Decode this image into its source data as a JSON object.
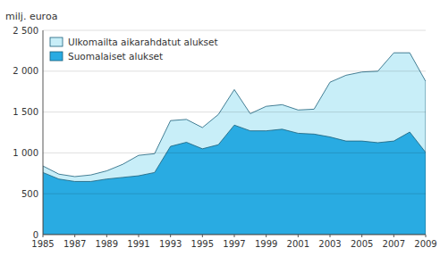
{
  "chart_data": {
    "type": "area",
    "ylabel": "milj. euroa",
    "x": [
      1985,
      1986,
      1987,
      1988,
      1989,
      1990,
      1991,
      1992,
      1993,
      1994,
      1995,
      1996,
      1997,
      1998,
      1999,
      2000,
      2001,
      2002,
      2003,
      2004,
      2005,
      2006,
      2007,
      2008,
      2009
    ],
    "series": [
      {
        "name": "Ulkomailta aikarahdatut alukset",
        "color": "#c8eef8",
        "values": [
          840,
          740,
          710,
          730,
          780,
          860,
          970,
          990,
          1395,
          1410,
          1310,
          1470,
          1775,
          1480,
          1570,
          1590,
          1525,
          1535,
          1865,
          1950,
          1990,
          2000,
          2225,
          2225,
          1875
        ]
      },
      {
        "name": "Suomalaiset alukset",
        "color": "#29abe2",
        "values": [
          760,
          680,
          650,
          650,
          680,
          700,
          720,
          760,
          1080,
          1130,
          1050,
          1100,
          1340,
          1270,
          1270,
          1290,
          1240,
          1230,
          1195,
          1145,
          1145,
          1125,
          1145,
          1255,
          1005
        ]
      }
    ],
    "stacked": false,
    "xlim": [
      1985,
      2009
    ],
    "xticks": [
      1985,
      1987,
      1989,
      1991,
      1993,
      1995,
      1997,
      1999,
      2001,
      2003,
      2005,
      2007,
      2009
    ],
    "ylim": [
      0,
      2500
    ],
    "yticks": [
      0,
      500,
      {
        "value": 1000,
        "label": "1 000"
      },
      {
        "value": 1500,
        "label": "1 500"
      },
      {
        "value": 2000,
        "label": "2 000"
      },
      {
        "value": 2500,
        "label": "2 500"
      }
    ],
    "grid": true,
    "legend": "upper left"
  }
}
